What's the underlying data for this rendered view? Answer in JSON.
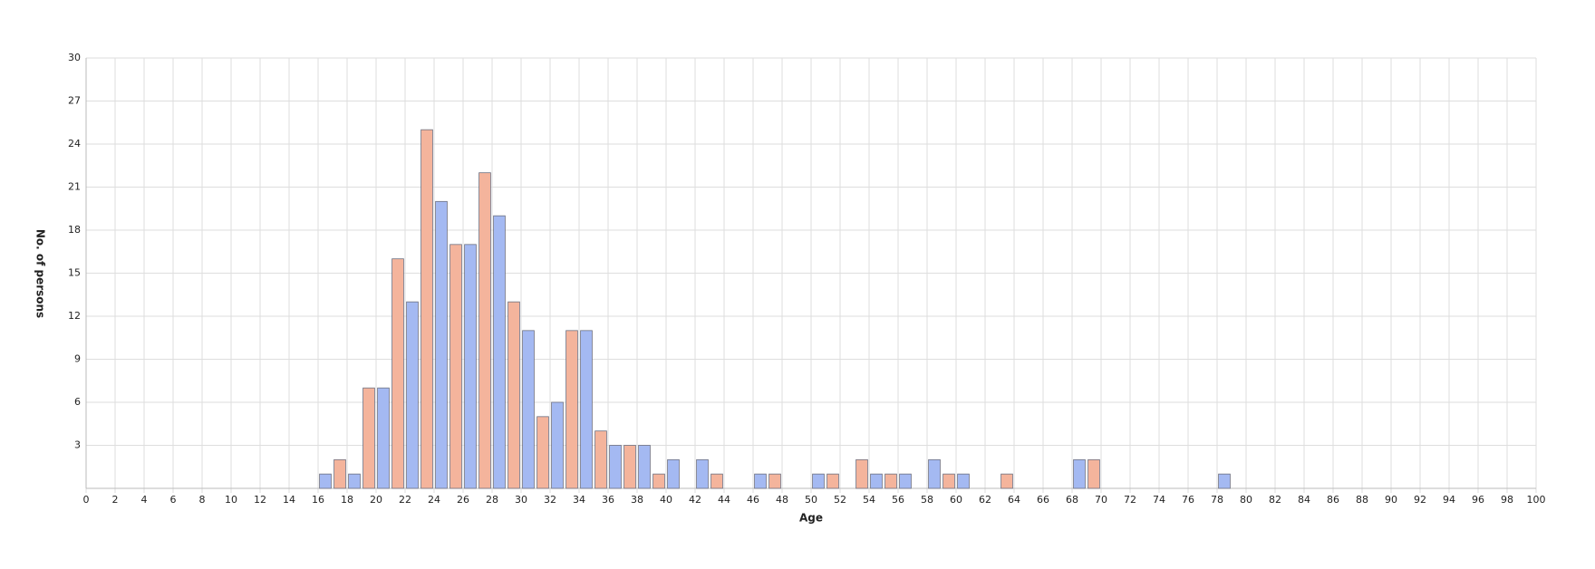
{
  "chart_data": {
    "type": "histogram",
    "xlabel": "Age",
    "ylabel": "No. of persons",
    "bins": [
      0,
      1,
      2,
      3,
      4,
      5,
      6,
      7,
      8,
      9,
      10,
      11,
      12,
      13,
      14,
      15,
      16,
      17,
      18,
      19,
      20,
      21,
      22,
      23,
      24,
      25,
      26,
      27,
      28,
      29,
      30,
      31,
      32,
      33,
      34,
      35,
      36,
      37,
      38,
      39,
      40,
      41,
      42,
      43,
      44,
      45,
      46,
      47,
      48,
      49,
      50,
      51,
      52,
      53,
      54,
      55,
      56,
      57,
      58,
      59,
      60,
      61,
      62,
      63,
      64,
      65,
      66,
      67,
      68,
      69,
      70,
      71,
      72,
      73,
      74,
      75,
      76,
      77,
      78,
      79,
      80,
      81,
      82,
      83,
      84,
      85,
      86,
      87,
      88,
      89,
      90,
      91,
      92,
      93,
      94,
      95,
      96,
      97,
      98,
      99,
      100
    ],
    "values": [
      0,
      0,
      0,
      0,
      0,
      0,
      0,
      0,
      0,
      0,
      0,
      0,
      0,
      0,
      0,
      0,
      1,
      2,
      1,
      7,
      7,
      16,
      13,
      25,
      20,
      17,
      17,
      22,
      19,
      13,
      11,
      5,
      6,
      11,
      11,
      4,
      3,
      3,
      3,
      1,
      2,
      0,
      2,
      1,
      0,
      0,
      1,
      1,
      0,
      0,
      1,
      1,
      0,
      2,
      1,
      1,
      1,
      0,
      2,
      1,
      1,
      0,
      0,
      1,
      0,
      0,
      0,
      0,
      2,
      2,
      0,
      0,
      0,
      0,
      0,
      0,
      0,
      0,
      1,
      0,
      0,
      0,
      0,
      0,
      0,
      0,
      0,
      0,
      0,
      0,
      0,
      0,
      0,
      0,
      0,
      0,
      0,
      0,
      0,
      0
    ],
    "colors": [
      "#a4b9f2",
      "#f4b49c"
    ],
    "xlim": [
      0,
      100
    ],
    "xticks": [
      0,
      2,
      4,
      6,
      8,
      10,
      12,
      14,
      16,
      18,
      20,
      22,
      24,
      26,
      28,
      30,
      32,
      34,
      36,
      38,
      40,
      42,
      44,
      46,
      48,
      50,
      52,
      54,
      56,
      58,
      60,
      62,
      64,
      66,
      68,
      70,
      72,
      74,
      76,
      78,
      80,
      82,
      84,
      86,
      88,
      90,
      92,
      94,
      96,
      98,
      100
    ],
    "ylim": [
      0,
      30
    ],
    "yticks": [
      3,
      6,
      9,
      12,
      15,
      18,
      21,
      24,
      27,
      30
    ],
    "grid": true
  }
}
